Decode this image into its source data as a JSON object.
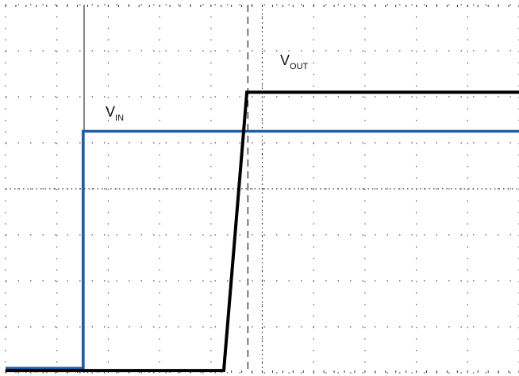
{
  "chart_data": {
    "type": "line",
    "title": "",
    "xlabel": "",
    "ylabel": "",
    "grid": true,
    "grid_style": "dotted oscilloscope graticule",
    "xlim": [
      0,
      10
    ],
    "ylim": [
      0,
      8
    ],
    "series": [
      {
        "name": "VIN",
        "color": "#1f5fa8",
        "x": [
          0,
          1.51,
          1.51,
          10
        ],
        "y": [
          0.1,
          0.1,
          5.25,
          5.25
        ]
      },
      {
        "name": "VOUT",
        "color": "#000000",
        "x": [
          0,
          4.25,
          4.7,
          10
        ],
        "y": [
          0.05,
          0.05,
          6.1,
          6.1
        ]
      }
    ],
    "markers": [
      {
        "name": "trigger-cursor",
        "orientation": "vertical",
        "x": 1.53,
        "color": "#444444"
      },
      {
        "name": "measurement-cursor",
        "orientation": "vertical",
        "x": 4.72,
        "color": "#333333"
      }
    ],
    "annotations": [
      {
        "id": "vin",
        "main": "V",
        "sub": "IN"
      },
      {
        "id": "vout",
        "main": "V",
        "sub": "OUT"
      }
    ]
  }
}
